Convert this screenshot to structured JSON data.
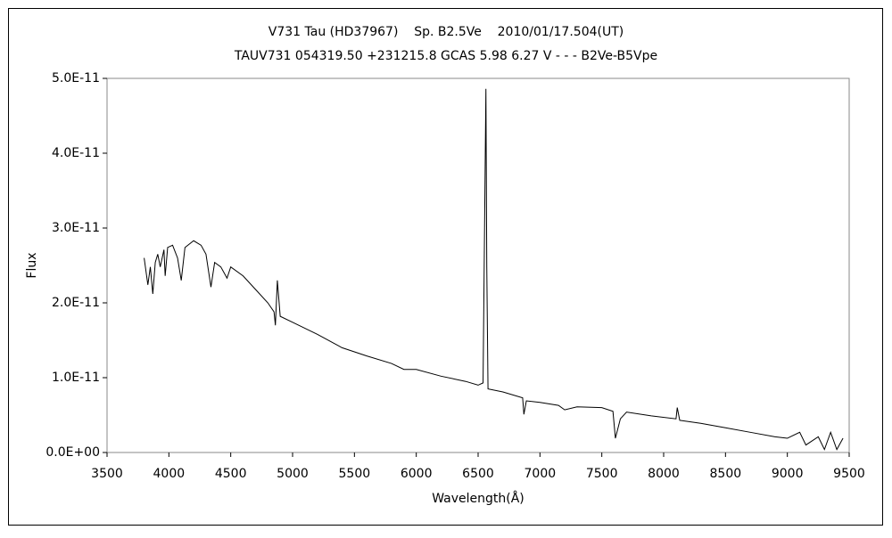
{
  "chart_data": {
    "type": "line",
    "title": "V731 Tau (HD37967)    Sp. B2.5Ve    2010/01/17.504(UT)",
    "subtitle": "TAUV731 054319.50 +231215.8 GCAS 5.98 6.27 V - - - B2Ve-B5Vpe",
    "x_label": "Wavelength(Å)",
    "y_label": "Flux",
    "x": [
      3800,
      3830,
      3850,
      3870,
      3890,
      3910,
      3930,
      3960,
      3970,
      3990,
      4030,
      4070,
      4100,
      4130,
      4200,
      4260,
      4300,
      4340,
      4370,
      4420,
      4470,
      4500,
      4600,
      4700,
      4800,
      4850,
      4861,
      4877,
      4900,
      5000,
      5200,
      5400,
      5600,
      5800,
      5900,
      6000,
      6200,
      6400,
      6500,
      6540,
      6555,
      6563,
      6570,
      6580,
      6700,
      6860,
      6870,
      6890,
      7000,
      7150,
      7200,
      7300,
      7500,
      7590,
      7610,
      7650,
      7700,
      7900,
      8100,
      8110,
      8130,
      8300,
      8500,
      8700,
      8900,
      9000,
      9100,
      9150,
      9250,
      9300,
      9350,
      9400,
      9450
    ],
    "values": [
      2.6e-11,
      2.24e-11,
      2.48e-11,
      2.12e-11,
      2.54e-11,
      2.65e-11,
      2.48e-11,
      2.71e-11,
      2.36e-11,
      2.74e-11,
      2.77e-11,
      2.6e-11,
      2.3e-11,
      2.74e-11,
      2.83e-11,
      2.77e-11,
      2.65e-11,
      2.21e-11,
      2.54e-11,
      2.48e-11,
      2.33e-11,
      2.48e-11,
      2.36e-11,
      2.18e-11,
      2e-11,
      1.88e-11,
      1.7e-11,
      2.3e-11,
      1.82e-11,
      1.74e-11,
      1.58e-11,
      1.4e-11,
      1.29e-11,
      1.19e-11,
      1.11e-11,
      1.11e-11,
      1.02e-11,
      9.5e-12,
      9e-12,
      9.3e-12,
      3.49e-11,
      4.86e-11,
      2.48e-11,
      8.5e-12,
      8.1e-12,
      7.3e-12,
      5.1e-12,
      6.9e-12,
      6.7e-12,
      6.3e-12,
      5.7e-12,
      6.1e-12,
      6e-12,
      5.5e-12,
      1.9e-12,
      4.5e-12,
      5.4e-12,
      4.9e-12,
      4.5e-12,
      6e-12,
      4.3e-12,
      3.9e-12,
      3.3e-12,
      2.7e-12,
      2.1e-12,
      1.9e-12,
      2.7e-12,
      1e-12,
      2.1e-12,
      4e-13,
      2.7e-12,
      4e-13,
      1.9e-12
    ],
    "color": "#000000",
    "xlim": [
      3500,
      9500
    ],
    "xticks": [
      3500,
      4000,
      4500,
      5000,
      5500,
      6000,
      6500,
      7000,
      7500,
      8000,
      8500,
      9000,
      9500
    ],
    "ylim": [
      0,
      5e-11
    ],
    "yticks": [
      {
        "value": 0,
        "label": "0.0E+00"
      },
      {
        "value": 1e-11,
        "label": "1.0E-11"
      },
      {
        "value": 2e-11,
        "label": "2.0E-11"
      },
      {
        "value": 3e-11,
        "label": "3.0E-11"
      },
      {
        "value": 4e-11,
        "label": "4.0E-11"
      },
      {
        "value": 5e-11,
        "label": "5.0E-11"
      }
    ],
    "grid": false
  }
}
